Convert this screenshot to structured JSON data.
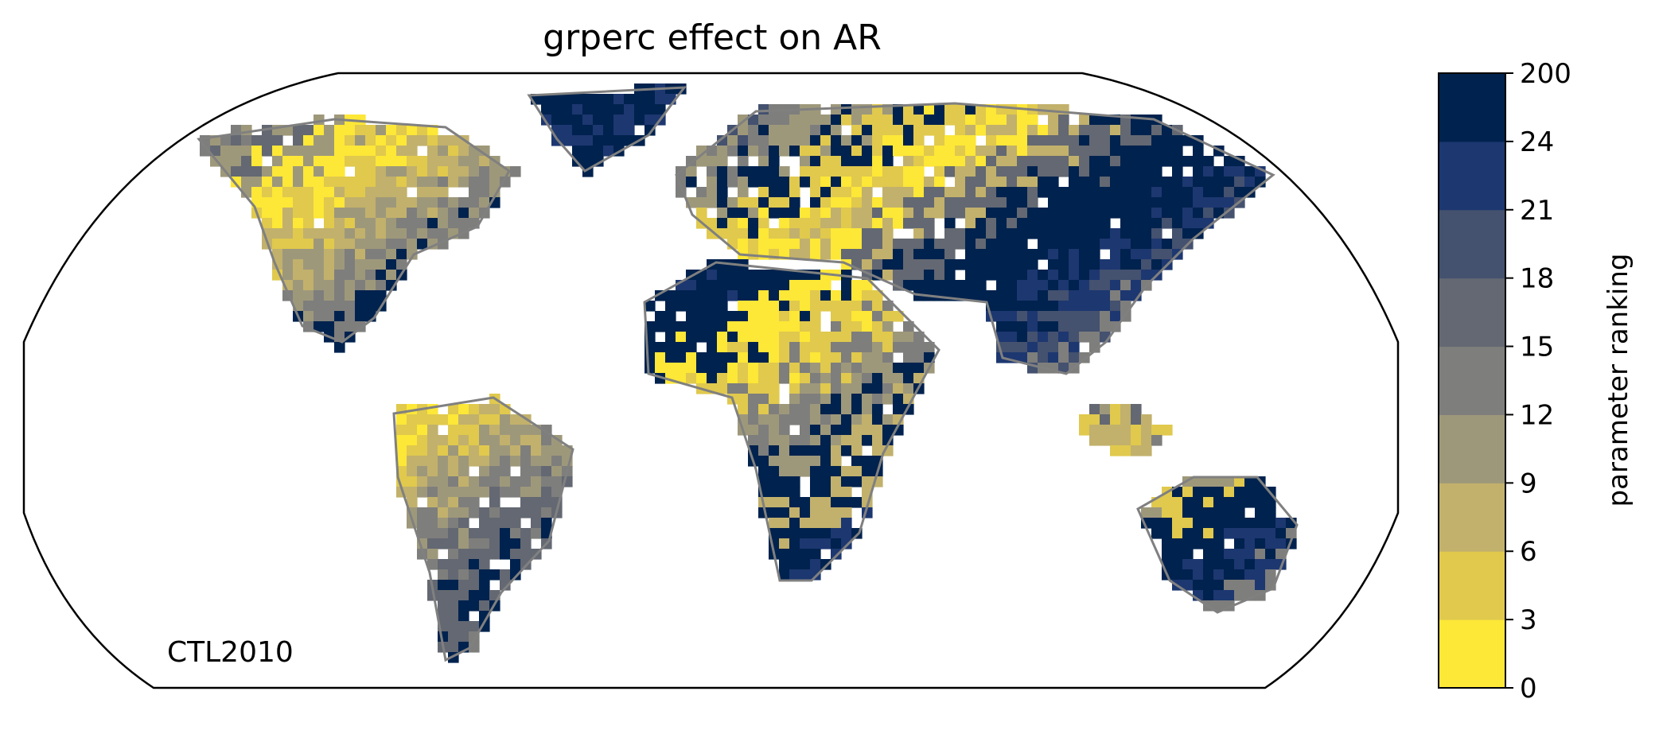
{
  "map": {
    "title": "grperc effect on AR",
    "label": "CTL2010",
    "projection": "Robinson",
    "coastline_color": "#808080",
    "frame_color": "#000000",
    "ocean_color": "#ffffff"
  },
  "colorbar": {
    "label": "parameter ranking",
    "tick_labels": [
      "0",
      "3",
      "6",
      "9",
      "12",
      "15",
      "18",
      "21",
      "24",
      "200"
    ],
    "colors": [
      "#fde737",
      "#e0c94d",
      "#c2b16c",
      "#9e987b",
      "#7e7e7c",
      "#636872",
      "#44516f",
      "#1d3770",
      "#00224e"
    ]
  }
}
